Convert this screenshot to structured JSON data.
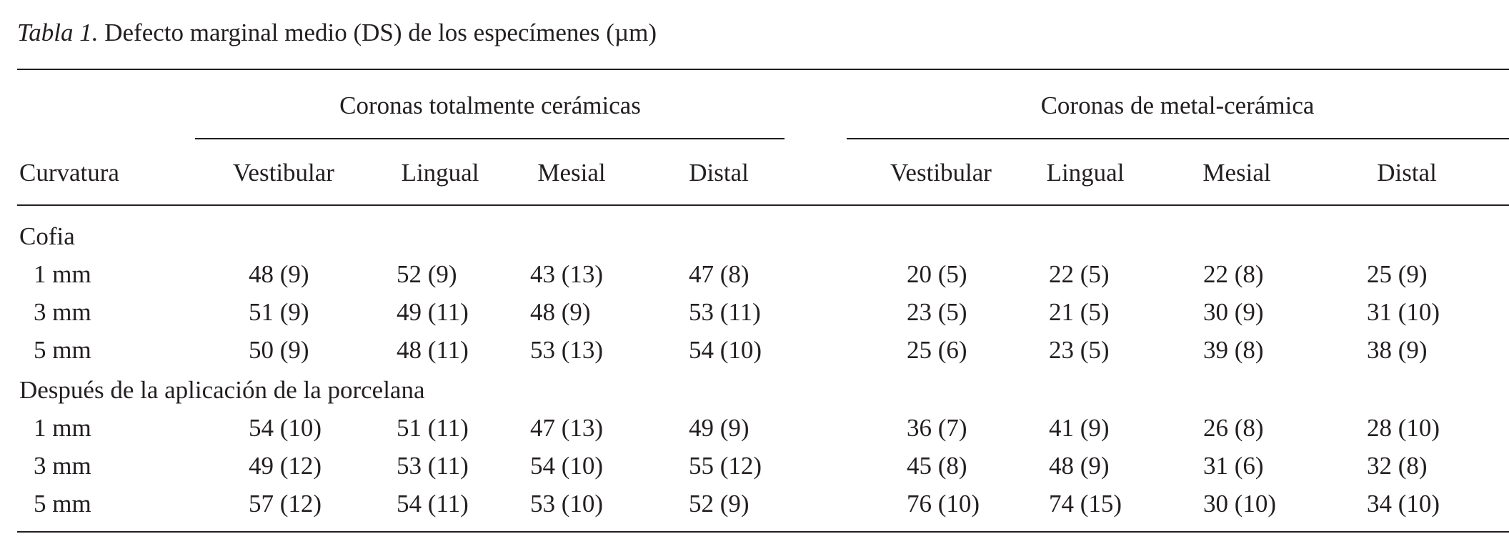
{
  "caption": {
    "label": "Tabla 1.",
    "text": " Defecto marginal medio (DS) de los especímenes (µm)"
  },
  "groups": [
    "Coronas totalmente cerámicas",
    "Coronas de metal-cerámica"
  ],
  "row_header": "Curvatura",
  "columns": [
    "Vestibular",
    "Lingual",
    "Mesial",
    "Distal",
    "Vestibular",
    "Lingual",
    "Mesial",
    "Distal"
  ],
  "sections": [
    {
      "title": "Cofia",
      "rows": [
        {
          "label": "1 mm",
          "values": [
            "48 (9)",
            "52 (9)",
            "43 (13)",
            "47 (8)",
            "20 (5)",
            "22 (5)",
            "22 (8)",
            "25 (9)"
          ]
        },
        {
          "label": "3 mm",
          "values": [
            "51 (9)",
            "49 (11)",
            "48 (9)",
            "53 (11)",
            "23 (5)",
            "21 (5)",
            "30 (9)",
            "31 (10)"
          ]
        },
        {
          "label": "5 mm",
          "values": [
            "50 (9)",
            "48 (11)",
            "53 (13)",
            "54 (10)",
            "25 (6)",
            "23 (5)",
            "39 (8)",
            "38 (9)"
          ]
        }
      ]
    },
    {
      "title": "Después de la aplicación de la porcelana",
      "rows": [
        {
          "label": "1 mm",
          "values": [
            "54 (10)",
            "51 (11)",
            "47 (13)",
            "49 (9)",
            "36 (7)",
            "41 (9)",
            "26 (8)",
            "28 (10)"
          ]
        },
        {
          "label": "3 mm",
          "values": [
            "49 (12)",
            "53 (11)",
            "54 (10)",
            "55 (12)",
            "45 (8)",
            "48 (9)",
            "31 (6)",
            "32 (8)"
          ]
        },
        {
          "label": "5 mm",
          "values": [
            "57 (12)",
            "54 (11)",
            "53 (10)",
            "52 (9)",
            "76 (10)",
            "74 (15)",
            "30 (10)",
            "34 (10)"
          ]
        }
      ]
    }
  ]
}
